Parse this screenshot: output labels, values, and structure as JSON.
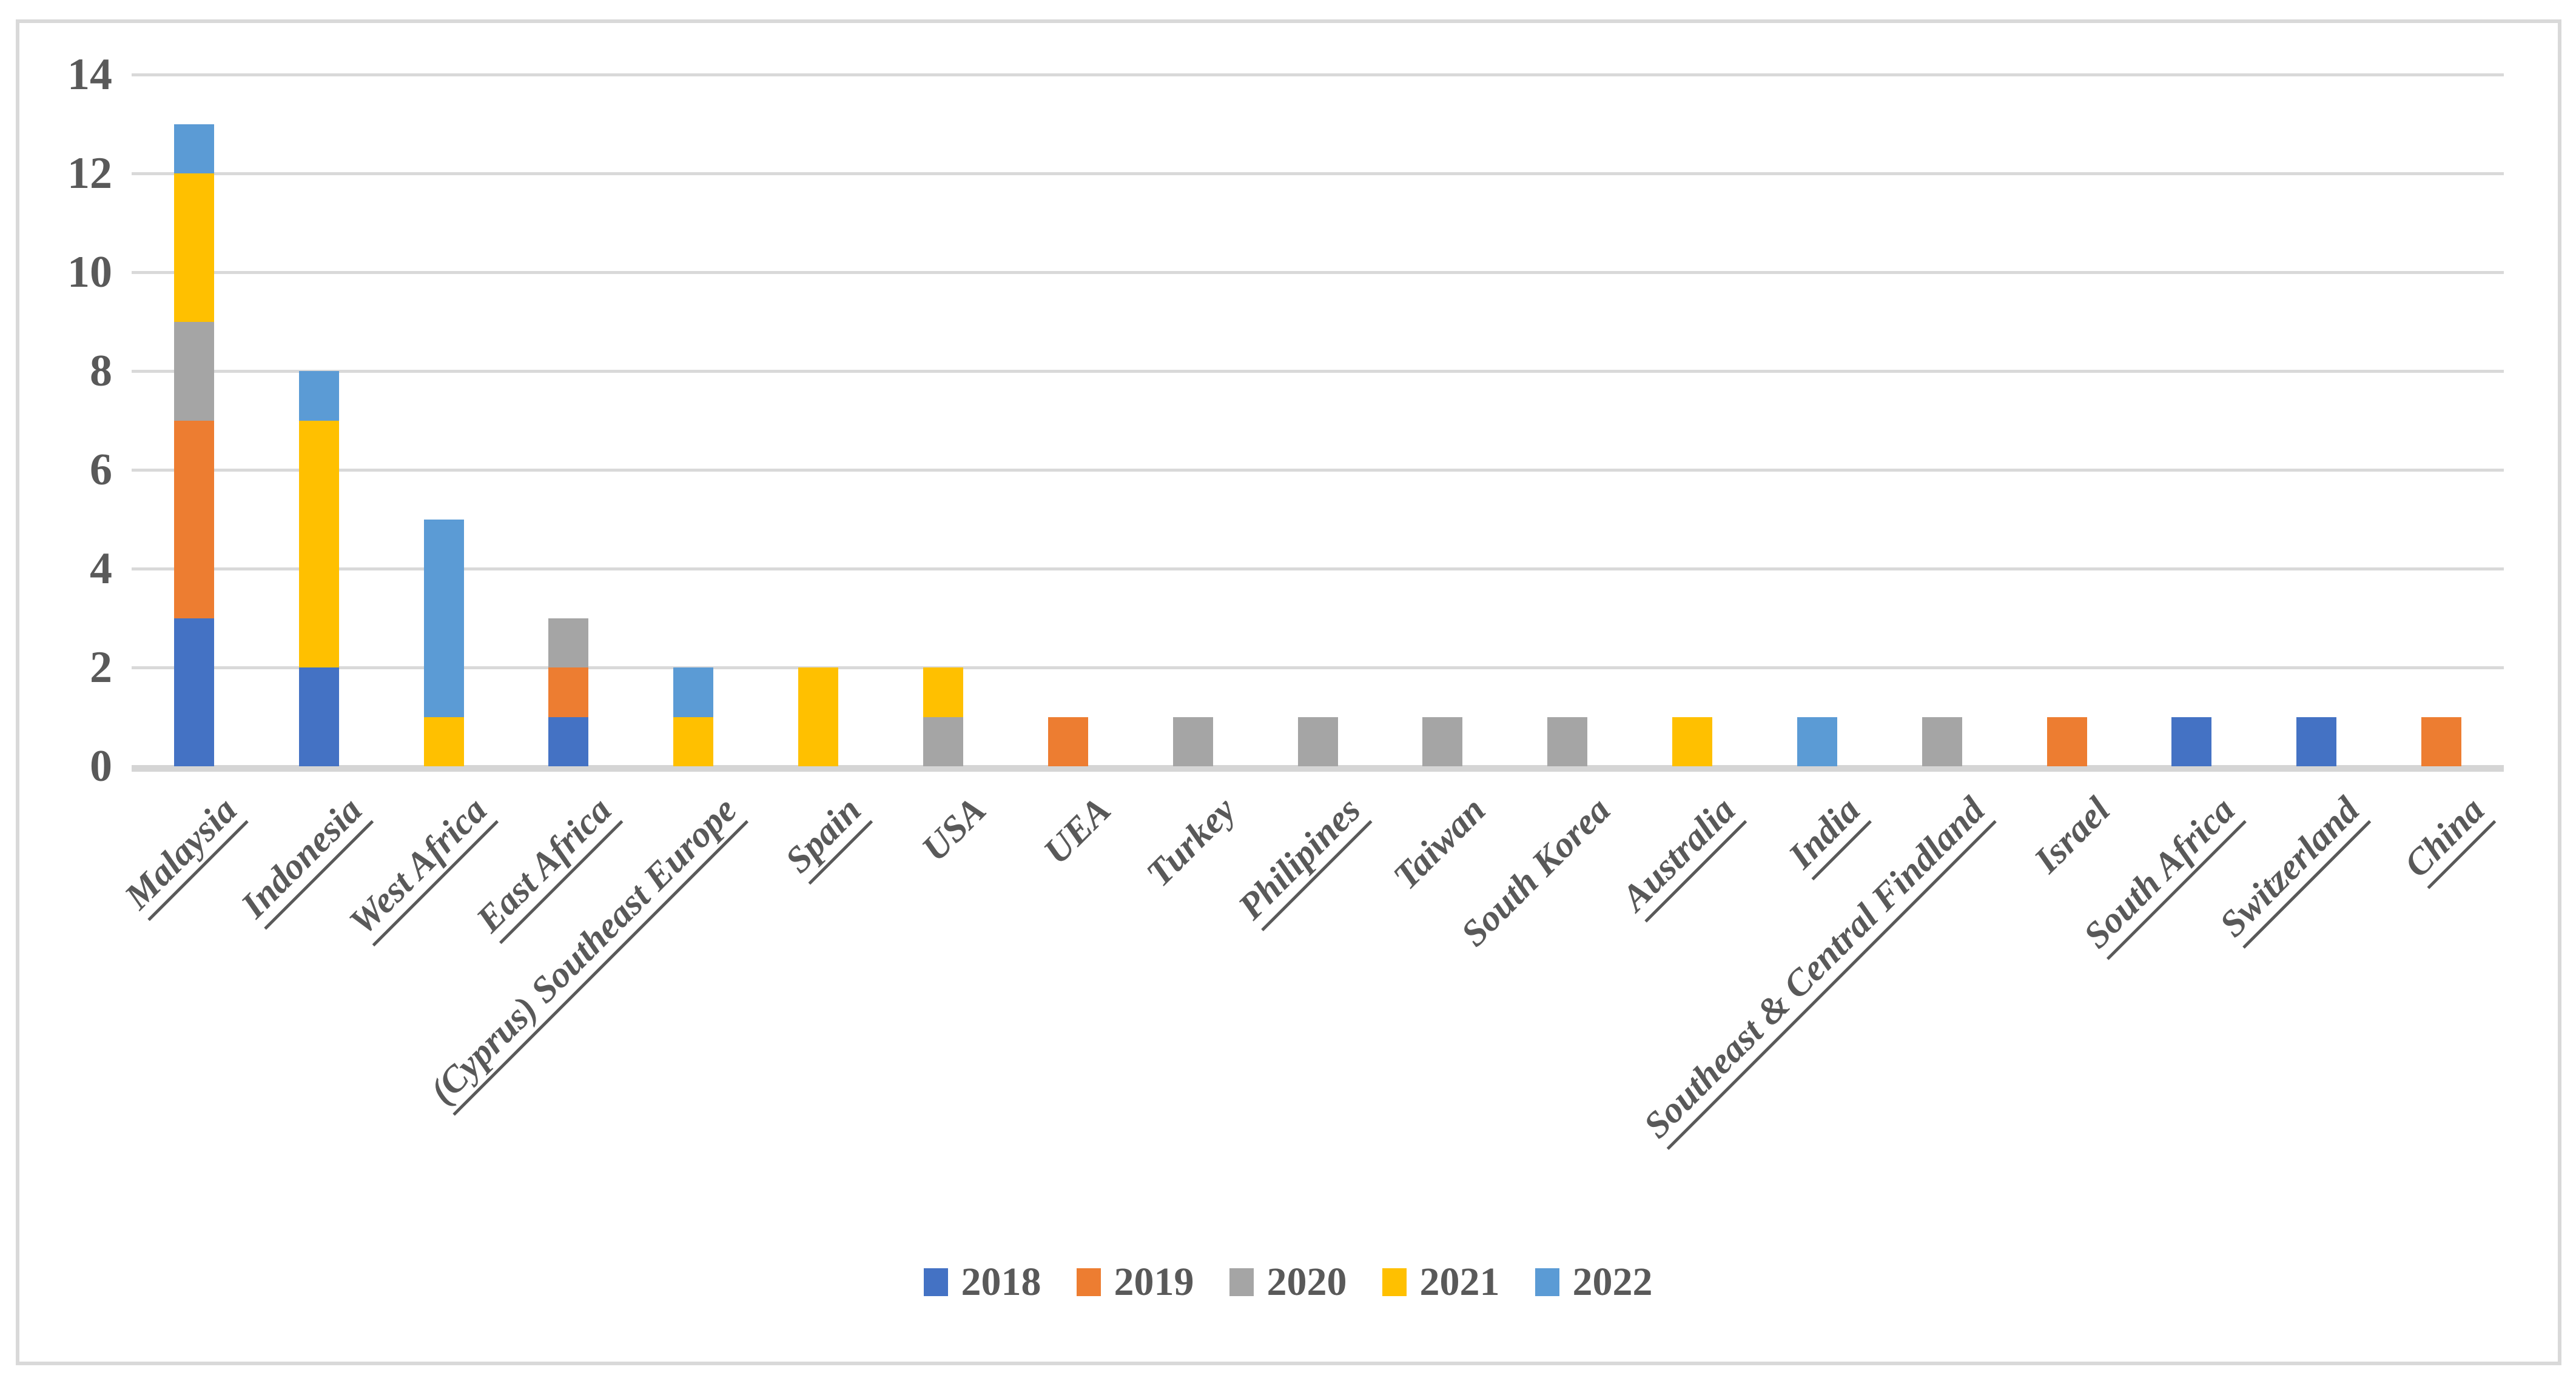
{
  "chart_data": {
    "type": "bar",
    "variant": "stacked-column",
    "title": "",
    "xlabel": "",
    "ylabel": "",
    "grid": true,
    "legend_position": "bottom",
    "colors": {
      "grid": "#D9D9D9",
      "axis": "#D5D5D5",
      "text": "#595959",
      "border": "#D9D9D9"
    },
    "y_axis": {
      "min": 0,
      "max": 14,
      "step": 2,
      "ticks": [
        "0",
        "2",
        "4",
        "6",
        "8",
        "10",
        "12",
        "14"
      ]
    },
    "categories": [
      {
        "label": "Malaysia",
        "underline": true
      },
      {
        "label": "Indonesia",
        "underline": true
      },
      {
        "label": "West Africa",
        "underline": true
      },
      {
        "label": "East Africa",
        "underline": true
      },
      {
        "label": "(Cyprus) Southeast Europe",
        "underline": true
      },
      {
        "label": "Spain",
        "underline": true
      },
      {
        "label": "USA",
        "underline": false
      },
      {
        "label": "UEA",
        "underline": false
      },
      {
        "label": "Turkey",
        "underline": false
      },
      {
        "label": "Philipines",
        "underline": true
      },
      {
        "label": "Taiwan",
        "underline": false
      },
      {
        "label": "South Korea",
        "underline": false
      },
      {
        "label": "Australia",
        "underline": true
      },
      {
        "label": "India",
        "underline": true
      },
      {
        "label": "Southeast & Central Findland",
        "underline": true
      },
      {
        "label": "Israel",
        "underline": false
      },
      {
        "label": "South Africa",
        "underline": true
      },
      {
        "label": "Switzerland",
        "underline": true
      },
      {
        "label": "China",
        "underline": true
      }
    ],
    "series": [
      {
        "name": "2018",
        "color": "#4472C4",
        "values": [
          3,
          2,
          0,
          1,
          0,
          0,
          0,
          0,
          0,
          0,
          0,
          0,
          0,
          0,
          0,
          0,
          1,
          1,
          0
        ]
      },
      {
        "name": "2019",
        "color": "#ED7D31",
        "values": [
          4,
          0,
          0,
          1,
          0,
          0,
          0,
          1,
          0,
          0,
          0,
          0,
          0,
          0,
          0,
          1,
          0,
          0,
          1
        ]
      },
      {
        "name": "2020",
        "color": "#A5A5A5",
        "values": [
          2,
          0,
          0,
          1,
          0,
          0,
          1,
          0,
          1,
          1,
          1,
          1,
          0,
          0,
          1,
          0,
          0,
          0,
          0
        ]
      },
      {
        "name": "2021",
        "color": "#FFC000",
        "values": [
          3,
          5,
          1,
          0,
          1,
          2,
          1,
          0,
          0,
          0,
          0,
          0,
          1,
          0,
          0,
          0,
          0,
          0,
          0
        ]
      },
      {
        "name": "2022",
        "color": "#5B9BD5",
        "values": [
          1,
          1,
          4,
          0,
          1,
          0,
          0,
          0,
          0,
          0,
          0,
          0,
          0,
          1,
          0,
          0,
          0,
          0,
          0
        ]
      }
    ],
    "totals": [
      13,
      8,
      5,
      3,
      2,
      2,
      2,
      1,
      1,
      1,
      1,
      1,
      1,
      1,
      1,
      1,
      1,
      1,
      1
    ]
  }
}
